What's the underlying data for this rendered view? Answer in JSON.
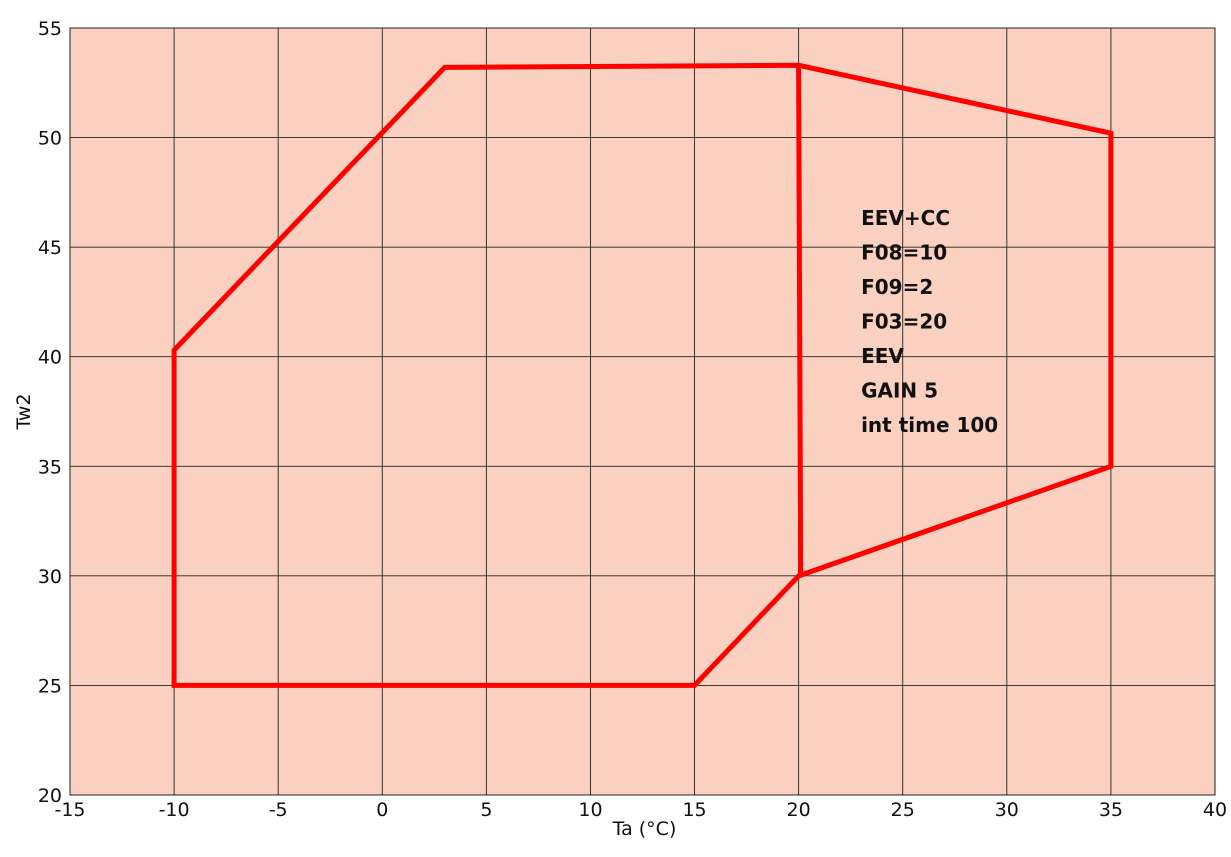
{
  "chart_data": {
    "type": "line",
    "title": "",
    "xlabel": "Ta (°C)",
    "ylabel": "Tw2",
    "xlim": [
      -15,
      40
    ],
    "ylim": [
      20,
      55
    ],
    "xticks": [
      -15,
      -10,
      -5,
      0,
      5,
      10,
      15,
      20,
      25,
      30,
      35,
      40
    ],
    "yticks": [
      20,
      25,
      30,
      35,
      40,
      45,
      50,
      55
    ],
    "grid": true,
    "background_color": "#fad0c0",
    "grid_color": "#222222",
    "series": [
      {
        "color": "#ff0000",
        "closed": true,
        "points": [
          {
            "x": -10,
            "y": 25
          },
          {
            "x": -10,
            "y": 40.3
          },
          {
            "x": 3,
            "y": 53.2
          },
          {
            "x": 20,
            "y": 53.3
          },
          {
            "x": 35,
            "y": 50.2
          },
          {
            "x": 35,
            "y": 35
          },
          {
            "x": 20,
            "y": 30
          },
          {
            "x": 15,
            "y": 25
          }
        ]
      },
      {
        "color": "#ff0000",
        "closed": false,
        "points": [
          {
            "x": 20,
            "y": 53.3
          },
          {
            "x": 20.1,
            "y": 30
          }
        ]
      }
    ],
    "annotations": [
      {
        "x": 23,
        "y": 46,
        "lines": [
          "EEV+CC",
          "F08=10",
          "F09=2",
          "F03=20",
          "EEV",
          "GAIN 5",
          "int time 100"
        ]
      }
    ]
  }
}
